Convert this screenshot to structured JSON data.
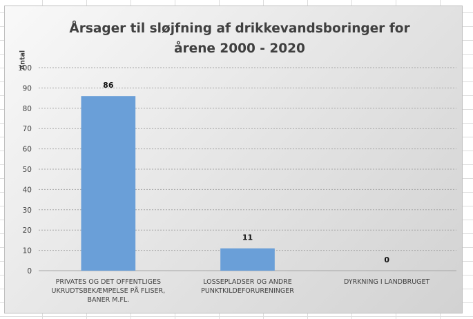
{
  "chart_data": {
    "type": "bar",
    "title": "Årsager til sløjfning af drikkevandsboringer for årene 2000 - 2020",
    "title_lines": [
      "Årsager til sløjfning af drikkevandsboringer for",
      "årene 2000 - 2020"
    ],
    "ylabel": "Antal",
    "xlabel": "",
    "categories": [
      "PRIVATES OG DET OFFENTLIGES UKRUDTSBEKÆMPELSE PÅ FLISER, BANER M.FL.",
      "LOSSEPLADSER OG ANDRE PUNKTKILDEFORURENINGER",
      "DYRKNING I LANDBRUGET"
    ],
    "category_lines": [
      [
        "PRIVATES OG DET OFFENTLIGES",
        "UKRUDTSBEKÆMPELSE PÅ FLISER,",
        "BANER M.FL."
      ],
      [
        "LOSSEPLADSER OG ANDRE",
        "PUNKTKILDEFORURENINGER"
      ],
      [
        "DYRKNING I LANDBRUGET"
      ]
    ],
    "values": [
      86,
      11,
      0
    ],
    "data_labels": [
      "86",
      "11",
      "0"
    ],
    "ylim": [
      0,
      100
    ],
    "yticks": [
      0,
      10,
      20,
      30,
      40,
      50,
      60,
      70,
      80,
      90,
      100
    ],
    "grid": true,
    "legend": "none",
    "bar_color": "#6a9fd8",
    "grid_color": "#a6a6a6",
    "text_color": "#404040"
  }
}
